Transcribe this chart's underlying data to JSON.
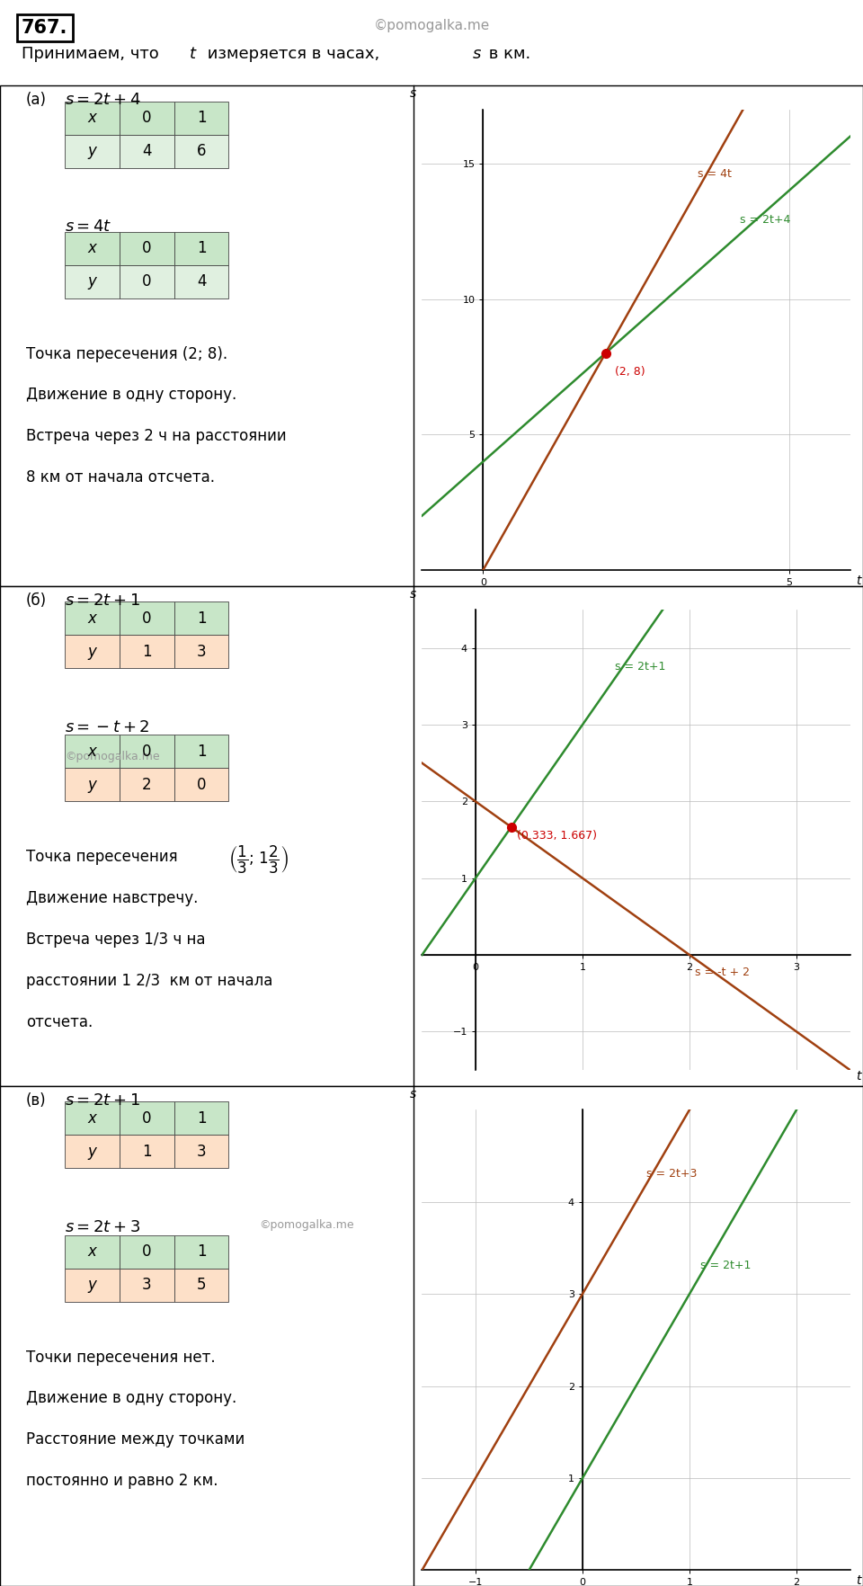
{
  "title_number": "767.",
  "watermark": "©pomogalka.me",
  "panel_a_label": "(a)",
  "panel_a_eq1": "$s = 2t + 4$",
  "panel_a_table1_x": [
    "0",
    "1"
  ],
  "panel_a_table1_y": [
    "4",
    "6"
  ],
  "panel_a_eq2": "$s = 4t$",
  "panel_a_table2_x": [
    "0",
    "1"
  ],
  "panel_a_table2_y": [
    "0",
    "4"
  ],
  "panel_a_text": [
    "Точка пересечения (2; 8).",
    "Движение в одну сторону.",
    "Встреча через 2 ч на расстоянии",
    "8 км от начала отсчета."
  ],
  "panel_a_graph_xlim": [
    -1,
    6
  ],
  "panel_a_graph_ylim": [
    0,
    17
  ],
  "panel_a_graph_xticks": [
    0,
    5
  ],
  "panel_a_graph_yticks": [
    5,
    10,
    15
  ],
  "panel_a_line1_color": "#2e8b2e",
  "panel_a_line2_color": "#a04010",
  "panel_a_intersect": [
    2,
    8
  ],
  "panel_a_line1_label": "s = 2t+4",
  "panel_a_line2_label": "s = 4t",
  "panel_b_label": "(б)",
  "panel_b_eq1": "$s = 2t + 1$",
  "panel_b_table1_x": [
    "0",
    "1"
  ],
  "panel_b_table1_y": [
    "1",
    "3"
  ],
  "panel_b_eq2": "$s = -t + 2$",
  "panel_b_table2_x": [
    "0",
    "1"
  ],
  "panel_b_table2_y": [
    "2",
    "0"
  ],
  "panel_b_text": [
    "Точка пересечения $\\left(\\dfrac{1}{3};\\ 1\\dfrac{2}{3}\\right)$",
    "Движение навстречу.",
    "Встреча через 1/3 ч на",
    "расстоянии 1 2/3  км от начала",
    "отсчета."
  ],
  "panel_b_watermark_after_eq2": true,
  "panel_b_graph_xlim": [
    -0.5,
    3.5
  ],
  "panel_b_graph_ylim": [
    -1.5,
    4.5
  ],
  "panel_b_graph_xticks": [
    0,
    1,
    2,
    3
  ],
  "panel_b_graph_yticks": [
    -1,
    1,
    2,
    3,
    4
  ],
  "panel_b_line1_color": "#2e8b2e",
  "panel_b_line2_color": "#a04010",
  "panel_b_intersect": [
    0.333,
    1.667
  ],
  "panel_b_line1_label": "s = 2t+1",
  "panel_b_line2_label": "s = -t + 2",
  "panel_c_label": "(в)",
  "panel_c_eq1": "$s = 2t + 1$",
  "panel_c_table1_x": [
    "0",
    "1"
  ],
  "panel_c_table1_y": [
    "1",
    "3"
  ],
  "panel_c_eq2": "$s = 2t + 3$",
  "panel_c_table2_x": [
    "0",
    "1"
  ],
  "panel_c_table2_y": [
    "3",
    "5"
  ],
  "panel_c_text": [
    "Точки пересечения нет.",
    "Движение в одну сторону.",
    "Расстояние между точками",
    "постоянно и равно 2 км."
  ],
  "panel_c_watermark_after_eq2": true,
  "panel_c_graph_xlim": [
    -1.5,
    2.5
  ],
  "panel_c_graph_ylim": [
    0,
    5
  ],
  "panel_c_graph_xticks": [
    -1,
    0,
    1,
    2
  ],
  "panel_c_graph_yticks": [
    1,
    2,
    3,
    4
  ],
  "panel_c_line1_color": "#2e8b2e",
  "panel_c_line2_color": "#a04010",
  "panel_c_line1_label": "s = 2t+1",
  "panel_c_line2_label": "s = 2t+3",
  "table_header_bg_green": "#c8e6c8",
  "table_data_bg_green": "#e0f0e0",
  "table_header_bg_orange": "#c8e6c8",
  "table_data_bg_orange": "#fde0c8",
  "grid_color": "#bbbbbb",
  "intersect_color": "#cc0000",
  "watermark_color": "#999999",
  "text_fontsize": 12,
  "eq_fontsize": 13,
  "label_fontsize": 12,
  "graph_label_fontsize": 9,
  "intro_fontsize": 13
}
